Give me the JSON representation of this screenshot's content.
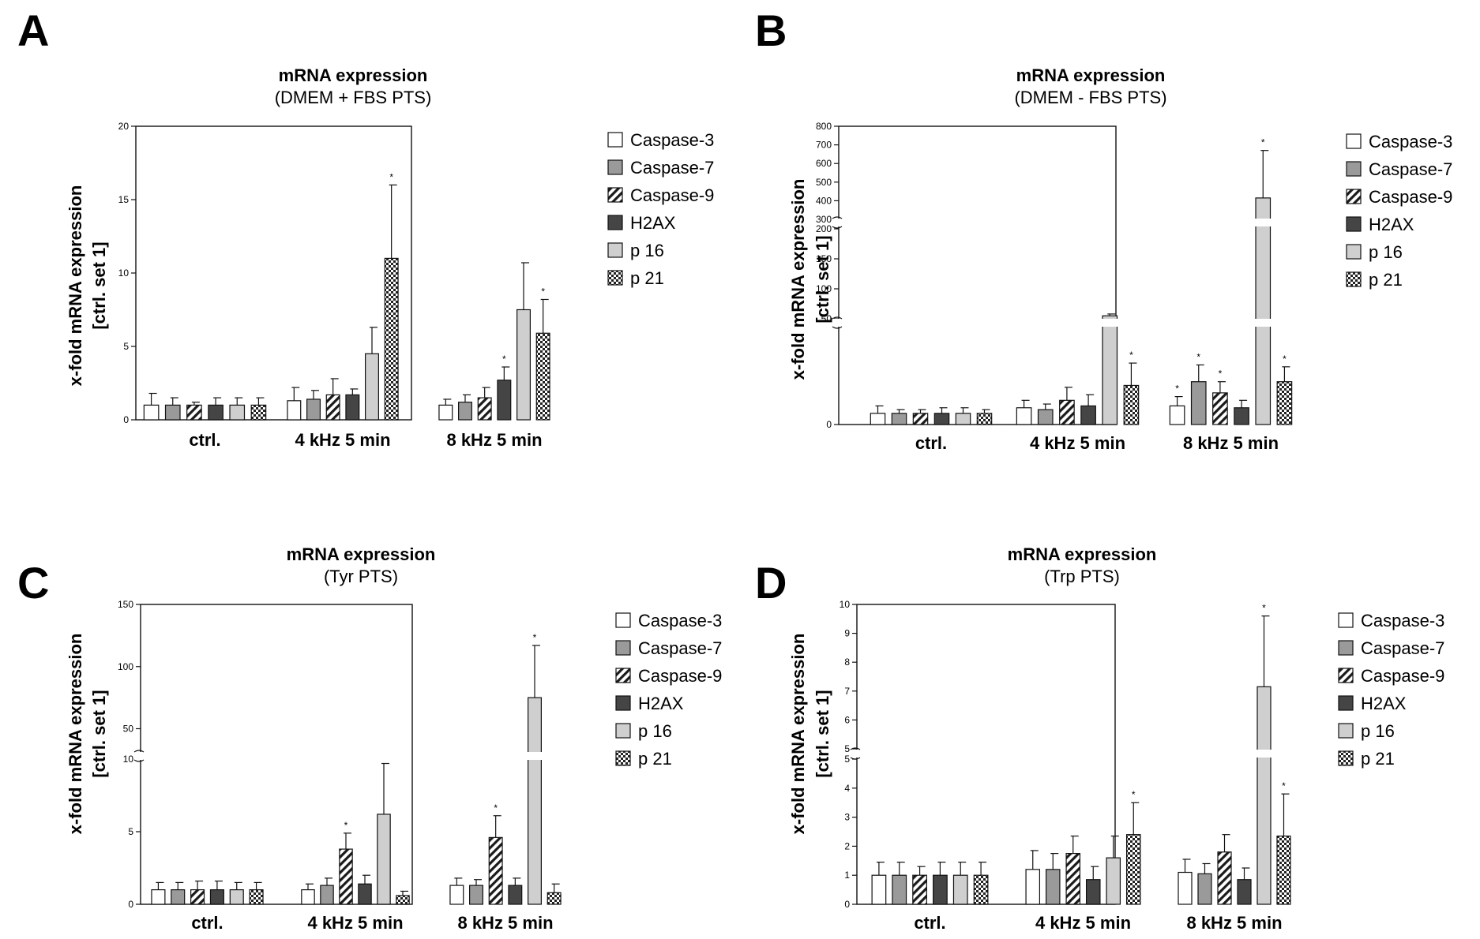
{
  "figure": {
    "legend_entries": [
      "Caspase-3",
      "Caspase-7",
      "Caspase-9",
      "H2AX",
      "p 16",
      "p 21"
    ],
    "series_styles": [
      {
        "name": "Caspase-3",
        "fill": "#ffffff",
        "pattern": "none"
      },
      {
        "name": "Caspase-7",
        "fill": "#9a9a9a",
        "pattern": "none"
      },
      {
        "name": "Caspase-9",
        "fill": "#ffffff",
        "pattern": "diagonal"
      },
      {
        "name": "H2AX",
        "fill": "#454545",
        "pattern": "none"
      },
      {
        "name": "p 16",
        "fill": "#cfcfcf",
        "pattern": "none"
      },
      {
        "name": "p 21",
        "fill": "#ffffff",
        "pattern": "checker"
      }
    ]
  },
  "chart_data": [
    {
      "panel": "A",
      "type": "bar",
      "title": "mRNA expression",
      "subtitle": "(DMEM + FBS PTS)",
      "ylabel_line1": "x-fold mRNA expression",
      "ylabel_line2": "[ctrl. set 1]",
      "categories": [
        "ctrl.",
        "4 kHz 5 min",
        "8 kHz 5 min"
      ],
      "ylim": [
        0,
        20
      ],
      "yticks": [
        "0",
        "5",
        "10",
        "15",
        "20"
      ],
      "significance_mark": "*",
      "series": [
        {
          "name": "Caspase-3",
          "values": [
            1.0,
            1.3,
            1.0
          ],
          "errors": [
            0.8,
            0.9,
            0.4
          ],
          "sig": [
            false,
            false,
            false
          ]
        },
        {
          "name": "Caspase-7",
          "values": [
            1.0,
            1.4,
            1.2
          ],
          "errors": [
            0.5,
            0.6,
            0.5
          ],
          "sig": [
            false,
            false,
            false
          ]
        },
        {
          "name": "Caspase-9",
          "values": [
            1.0,
            1.7,
            1.5
          ],
          "errors": [
            0.2,
            1.1,
            0.7
          ],
          "sig": [
            false,
            false,
            false
          ]
        },
        {
          "name": "H2AX",
          "values": [
            1.0,
            1.7,
            2.7
          ],
          "errors": [
            0.5,
            0.4,
            0.9
          ],
          "sig": [
            false,
            false,
            true
          ]
        },
        {
          "name": "p 16",
          "values": [
            1.0,
            4.5,
            7.5
          ],
          "errors": [
            0.5,
            1.8,
            3.2
          ],
          "sig": [
            false,
            false,
            false
          ]
        },
        {
          "name": "p 21",
          "values": [
            1.0,
            11.0,
            5.9
          ],
          "errors": [
            0.5,
            5.0,
            2.3
          ],
          "sig": [
            false,
            true,
            true
          ]
        }
      ]
    },
    {
      "panel": "B",
      "type": "bar",
      "title": "mRNA expression",
      "subtitle": "(DMEM - FBS PTS)",
      "ylabel_line1": "x-fold mRNA expression",
      "ylabel_line2": "[ctrl. set 1]",
      "categories": [
        "ctrl.",
        "4 kHz 5 min",
        "8 kHz 5 min"
      ],
      "axis_breaks": true,
      "segments": [
        {
          "range": [
            0,
            50
          ],
          "ticks": [
            "0"
          ]
        },
        {
          "range": [
            50,
            200
          ],
          "ticks": [
            "50",
            "100",
            "150",
            "200"
          ]
        },
        {
          "range": [
            300,
            800
          ],
          "ticks": [
            "300",
            "400",
            "500",
            "600",
            "700",
            "800"
          ]
        }
      ],
      "significance_mark": "*",
      "series": [
        {
          "name": "Caspase-3",
          "values": [
            6,
            9,
            10
          ],
          "errors": [
            4,
            4,
            5
          ],
          "sig": [
            false,
            false,
            true
          ]
        },
        {
          "name": "Caspase-7",
          "values": [
            6,
            8,
            23
          ],
          "errors": [
            2,
            3,
            9
          ],
          "sig": [
            false,
            false,
            true
          ]
        },
        {
          "name": "Caspase-9",
          "values": [
            6,
            13,
            17
          ],
          "errors": [
            2,
            7,
            6
          ],
          "sig": [
            false,
            false,
            true
          ]
        },
        {
          "name": "H2AX",
          "values": [
            6,
            10,
            9
          ],
          "errors": [
            3,
            6,
            4
          ],
          "sig": [
            false,
            false,
            false
          ]
        },
        {
          "name": "p 16",
          "values": [
            6,
            55,
            415
          ],
          "errors": [
            3,
            3,
            255
          ],
          "sig": [
            false,
            false,
            true
          ]
        },
        {
          "name": "p 21",
          "values": [
            6,
            21,
            23
          ],
          "errors": [
            2,
            12,
            8
          ],
          "sig": [
            false,
            true,
            true
          ]
        }
      ]
    },
    {
      "panel": "C",
      "type": "bar",
      "title": "mRNA expression",
      "subtitle": "(Tyr PTS)",
      "ylabel_line1": "x-fold mRNA expression",
      "ylabel_line2": "[ctrl. set 1]",
      "categories": [
        "ctrl.",
        "4 kHz 5 min",
        "8 kHz 5 min"
      ],
      "axis_breaks": true,
      "segments": [
        {
          "range": [
            0,
            10
          ],
          "ticks": [
            "0",
            "5",
            "10"
          ]
        },
        {
          "range": [
            30,
            150
          ],
          "ticks": [
            "50",
            "100",
            "150"
          ]
        }
      ],
      "significance_mark": "*",
      "series": [
        {
          "name": "Caspase-3",
          "values": [
            1.0,
            1.0,
            1.3
          ],
          "errors": [
            0.5,
            0.4,
            0.5
          ],
          "sig": [
            false,
            false,
            false
          ]
        },
        {
          "name": "Caspase-7",
          "values": [
            1.0,
            1.3,
            1.3
          ],
          "errors": [
            0.5,
            0.5,
            0.4
          ],
          "sig": [
            false,
            false,
            false
          ]
        },
        {
          "name": "Caspase-9",
          "values": [
            1.0,
            3.8,
            4.6
          ],
          "errors": [
            0.6,
            1.1,
            1.5
          ],
          "sig": [
            false,
            true,
            true
          ]
        },
        {
          "name": "H2AX",
          "values": [
            1.0,
            1.4,
            1.3
          ],
          "errors": [
            0.6,
            0.6,
            0.5
          ],
          "sig": [
            false,
            false,
            false
          ]
        },
        {
          "name": "p 16",
          "values": [
            1.0,
            6.2,
            75
          ],
          "errors": [
            0.5,
            3.5,
            42
          ],
          "sig": [
            false,
            false,
            true
          ]
        },
        {
          "name": "p 21",
          "values": [
            1.0,
            0.6,
            0.8
          ],
          "errors": [
            0.5,
            0.3,
            0.6
          ],
          "sig": [
            false,
            false,
            false
          ]
        }
      ]
    },
    {
      "panel": "D",
      "type": "bar",
      "title": "mRNA expression",
      "subtitle": "(Trp PTS)",
      "ylabel_line1": "x-fold mRNA expression",
      "ylabel_line2": "[ctrl. set 1]",
      "categories": [
        "ctrl.",
        "4 kHz 5 min",
        "8 kHz 5 min"
      ],
      "axis_breaks": true,
      "segments": [
        {
          "range": [
            0,
            5
          ],
          "ticks": [
            "0",
            "1",
            "2",
            "3",
            "4",
            "5"
          ]
        },
        {
          "range": [
            5,
            10
          ],
          "ticks": [
            "5",
            "6",
            "7",
            "8",
            "9",
            "10"
          ]
        }
      ],
      "significance_mark": "*",
      "series": [
        {
          "name": "Caspase-3",
          "values": [
            1.0,
            1.2,
            1.1
          ],
          "errors": [
            0.45,
            0.65,
            0.45
          ],
          "sig": [
            false,
            false,
            false
          ]
        },
        {
          "name": "Caspase-7",
          "values": [
            1.0,
            1.2,
            1.05
          ],
          "errors": [
            0.45,
            0.55,
            0.35
          ],
          "sig": [
            false,
            false,
            false
          ]
        },
        {
          "name": "Caspase-9",
          "values": [
            1.0,
            1.75,
            1.8
          ],
          "errors": [
            0.3,
            0.6,
            0.6
          ],
          "sig": [
            false,
            false,
            false
          ]
        },
        {
          "name": "H2AX",
          "values": [
            1.0,
            0.85,
            0.85
          ],
          "errors": [
            0.45,
            0.45,
            0.4
          ],
          "sig": [
            false,
            false,
            false
          ]
        },
        {
          "name": "p 16",
          "values": [
            1.0,
            1.6,
            7.15
          ],
          "errors": [
            0.45,
            0.75,
            2.45
          ],
          "sig": [
            false,
            false,
            true
          ]
        },
        {
          "name": "p 21",
          "values": [
            1.0,
            2.4,
            2.35
          ],
          "errors": [
            0.45,
            1.1,
            1.45
          ],
          "sig": [
            false,
            true,
            true
          ]
        }
      ]
    }
  ]
}
